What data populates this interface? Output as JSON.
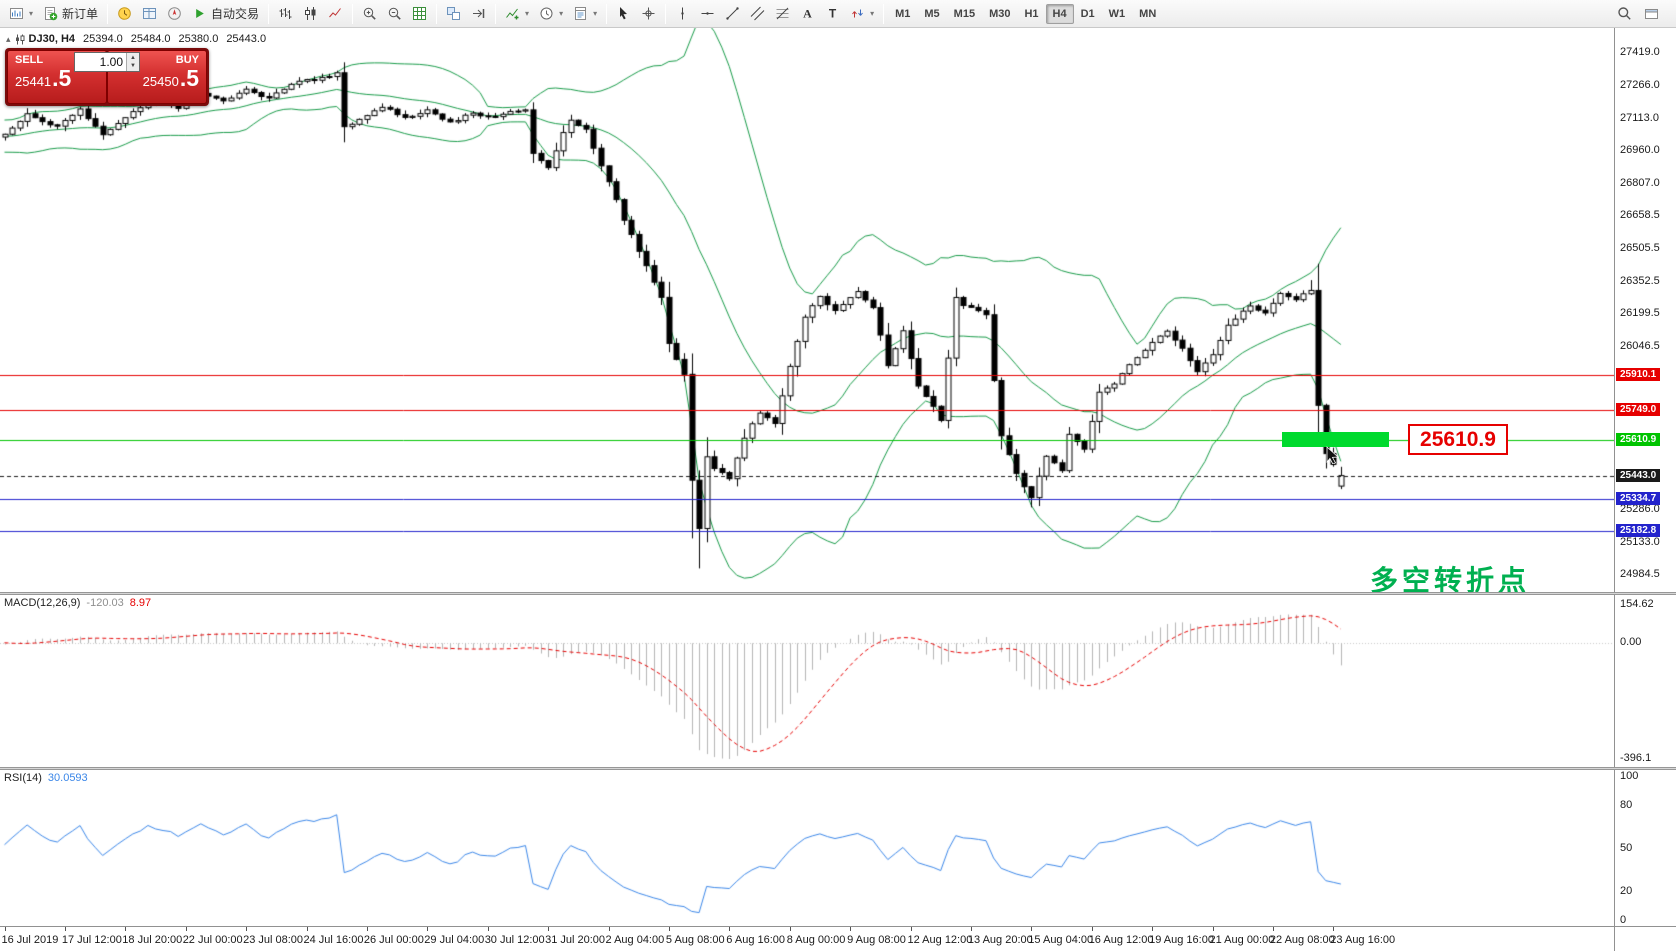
{
  "toolbar": {
    "groups": [
      {
        "items": [
          {
            "name": "new-chart",
            "dropdown": true
          },
          {
            "name": "new-order",
            "label": "新订单"
          }
        ]
      },
      {
        "items": [
          {
            "name": "market-watch"
          },
          {
            "name": "data-window"
          },
          {
            "name": "navigator"
          },
          {
            "name": "autotrading",
            "label": "自动交易"
          }
        ]
      },
      {
        "items": [
          {
            "name": "bar-chart"
          },
          {
            "name": "candlestick"
          },
          {
            "name": "line-chart"
          }
        ]
      },
      {
        "items": [
          {
            "name": "zoom-in"
          },
          {
            "name": "zoom-out"
          },
          {
            "name": "grid"
          }
        ]
      },
      {
        "items": [
          {
            "name": "arrange-windows"
          },
          {
            "name": "scroll-to-end"
          }
        ]
      },
      {
        "items": [
          {
            "name": "indicators",
            "dropdown": true
          },
          {
            "name": "periods",
            "dropdown": true
          },
          {
            "name": "templates",
            "dropdown": true
          }
        ]
      },
      {
        "items": [
          {
            "name": "cursor"
          },
          {
            "name": "crosshair"
          }
        ]
      },
      {
        "items": [
          {
            "name": "vertical-line"
          },
          {
            "name": "horizontal-line"
          },
          {
            "name": "trendline"
          },
          {
            "name": "equidistant-channel"
          },
          {
            "name": "fibonacci"
          },
          {
            "name": "text"
          },
          {
            "name": "text-label"
          },
          {
            "name": "arrows",
            "dropdown": true
          }
        ]
      }
    ],
    "timeframes": [
      "M1",
      "M5",
      "M15",
      "M30",
      "H1",
      "H4",
      "D1",
      "W1",
      "MN"
    ],
    "active_timeframe": "H4",
    "right_icons": [
      "search",
      "workspace"
    ]
  },
  "quote": {
    "symbol": "DJ30, H4",
    "open": "25394.0",
    "high": "25484.0",
    "low": "25380.0",
    "close": "25443.0",
    "sell_label": "SELL",
    "buy_label": "BUY",
    "sell_price_main": "25441",
    "sell_price_pip": ".5",
    "buy_price_main": "25450",
    "buy_price_pip": ".5",
    "volume": "1.00"
  },
  "macd": {
    "label": "MACD(12,26,9)",
    "value_main": "-120.03",
    "value_signal": "8.97",
    "axis": [
      "154.62",
      "0.00",
      "-396.1"
    ],
    "range": [
      -396.1,
      154.62
    ]
  },
  "rsi": {
    "label": "RSI(14)",
    "value": "30.0593",
    "axis": [
      100,
      80,
      50,
      20,
      0
    ]
  },
  "chart_data": {
    "type": "candlestick",
    "symbol": "DJ30",
    "timeframe": "H4",
    "bars": 178,
    "last_bar_ohlc": [
      25394.0,
      25484.0,
      25380.0,
      25443.0
    ],
    "ylim": [
      24900,
      27531
    ],
    "price_axis_ticks": [
      "27419.0",
      "27266.0",
      "27113.0",
      "26960.0",
      "26807.0",
      "26658.5",
      "26505.5",
      "26352.5",
      "26199.5",
      "26046.5",
      "25286.0",
      "25133.0",
      "24984.5"
    ],
    "levels": [
      {
        "price": 25910.1,
        "label": "25910.1",
        "color": "#e60000",
        "kind": "resistance-1",
        "dashed": false
      },
      {
        "price": 25749.0,
        "label": "25749.0",
        "color": "#e60000",
        "kind": "resistance-2",
        "dashed": false
      },
      {
        "price": 25610.9,
        "label": "25610.9",
        "color": "#00c400",
        "kind": "pivot",
        "dashed": false
      },
      {
        "price": 25443.0,
        "label": "25443.0",
        "color": "#1a1a1a",
        "kind": "current-price",
        "dashed": true
      },
      {
        "price": 25334.7,
        "label": "25334.7",
        "color": "#2323cc",
        "kind": "support-1",
        "dashed": false
      },
      {
        "price": 25182.8,
        "label": "25182.8",
        "color": "#2323cc",
        "kind": "support-2",
        "dashed": false
      }
    ],
    "annotations": {
      "pivot_callout": "25610.9",
      "turning_point": "多空转折点"
    },
    "bollinger": {
      "period": 20,
      "deviation": 2,
      "color": "#169a47"
    },
    "price_keyframes": [
      [
        0,
        27040
      ],
      [
        3,
        27125
      ],
      [
        7,
        27070
      ],
      [
        10,
        27150
      ],
      [
        13,
        27030
      ],
      [
        16,
        27110
      ],
      [
        19,
        27190
      ],
      [
        23,
        27160
      ],
      [
        26,
        27220
      ],
      [
        29,
        27190
      ],
      [
        32,
        27250
      ],
      [
        35,
        27200
      ],
      [
        38,
        27270
      ],
      [
        42,
        27300
      ],
      [
        44,
        27320
      ],
      [
        45,
        27070
      ],
      [
        47,
        27100
      ],
      [
        50,
        27165
      ],
      [
        53,
        27110
      ],
      [
        56,
        27150
      ],
      [
        59,
        27090
      ],
      [
        62,
        27135
      ],
      [
        64,
        27115
      ],
      [
        69,
        27150
      ],
      [
        70,
        26950
      ],
      [
        72,
        26880
      ],
      [
        74,
        27040
      ],
      [
        75,
        27105
      ],
      [
        77,
        27060
      ],
      [
        78,
        26970
      ],
      [
        80,
        26810
      ],
      [
        82,
        26640
      ],
      [
        84,
        26490
      ],
      [
        86,
        26350
      ],
      [
        87,
        26280
      ],
      [
        88,
        26060
      ],
      [
        90,
        25910
      ],
      [
        91,
        25420
      ],
      [
        92,
        25200
      ],
      [
        93,
        25530
      ],
      [
        94,
        25480
      ],
      [
        96,
        25430
      ],
      [
        98,
        25620
      ],
      [
        100,
        25740
      ],
      [
        102,
        25690
      ],
      [
        104,
        25950
      ],
      [
        106,
        26180
      ],
      [
        108,
        26280
      ],
      [
        110,
        26210
      ],
      [
        113,
        26300
      ],
      [
        115,
        26230
      ],
      [
        117,
        25960
      ],
      [
        119,
        26120
      ],
      [
        121,
        25860
      ],
      [
        123,
        25770
      ],
      [
        124,
        25705
      ],
      [
        126,
        26270
      ],
      [
        127,
        26240
      ],
      [
        130,
        26190
      ],
      [
        131,
        25890
      ],
      [
        132,
        25630
      ],
      [
        134,
        25450
      ],
      [
        136,
        25340
      ],
      [
        138,
        25530
      ],
      [
        140,
        25470
      ],
      [
        141,
        25630
      ],
      [
        143,
        25570
      ],
      [
        145,
        25830
      ],
      [
        147,
        25870
      ],
      [
        149,
        25960
      ],
      [
        152,
        26060
      ],
      [
        154,
        26120
      ],
      [
        156,
        26040
      ],
      [
        158,
        25930
      ],
      [
        160,
        26010
      ],
      [
        162,
        26140
      ],
      [
        165,
        26240
      ],
      [
        167,
        26200
      ],
      [
        169,
        26290
      ],
      [
        171,
        26265
      ],
      [
        173,
        26310
      ],
      [
        174,
        25770
      ],
      [
        175,
        25540
      ],
      [
        176,
        25490
      ],
      [
        177,
        25443
      ]
    ],
    "wick_low_overrides": [
      [
        91,
        25150
      ],
      [
        92,
        25010
      ],
      [
        136,
        25295
      ]
    ],
    "wick_high_overrides": [
      [
        44,
        27332
      ],
      [
        126,
        26320
      ],
      [
        173,
        26355
      ]
    ],
    "x_axis_labels": [
      "16 Jul 2019",
      "17 Jul 12:00",
      "18 Jul 20:00",
      "22 Jul 00:00",
      "23 Jul 08:00",
      "24 Jul 16:00",
      "26 Jul 00:00",
      "29 Jul 04:00",
      "30 Jul 12:00",
      "31 Jul 20:00",
      "2 Aug 04:00",
      "5 Aug 08:00",
      "6 Aug 16:00",
      "8 Aug 00:00",
      "9 Aug 08:00",
      "12 Aug 12:00",
      "13 Aug 20:00",
      "15 Aug 04:00",
      "16 Aug 12:00",
      "19 Aug 16:00",
      "21 Aug 00:00",
      "22 Aug 08:00",
      "23 Aug 16:00"
    ],
    "colors": {
      "macd_histogram": "#b4b4b4",
      "macd_signal": "#e60000",
      "rsi_line": "#3a86e8",
      "bull_body": "#ffffff",
      "bear_body": "#000000",
      "wick": "#000000"
    }
  }
}
